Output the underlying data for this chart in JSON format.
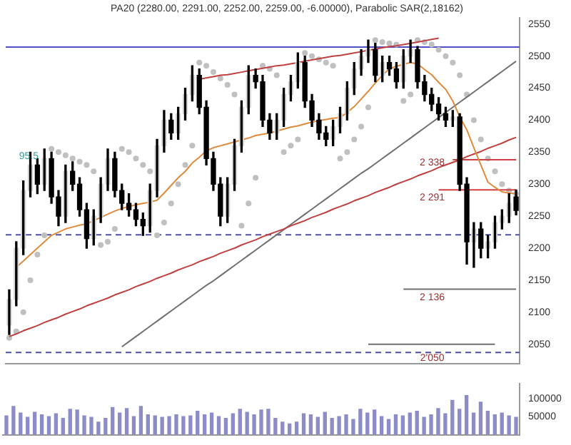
{
  "chart_data": [
    {
      "type": "candlestick",
      "title": "PA20 (2280.00, 2291.00, 2252.00, 2259.00, -6.00000), Parabolic SAR(2,18162)",
      "categories": [
        null,
        null,
        null,
        null,
        null,
        null,
        null,
        null,
        null,
        null,
        null,
        null,
        null,
        null,
        null,
        null,
        null,
        null,
        null,
        null,
        null,
        null,
        null,
        null,
        null,
        null,
        null,
        null,
        null,
        null,
        null,
        null,
        null,
        null,
        null,
        null,
        null,
        null,
        null,
        null,
        null,
        null,
        null,
        null,
        null,
        null,
        null,
        null,
        null,
        null,
        null,
        null,
        null,
        null,
        null,
        null,
        null,
        null,
        null,
        null,
        null,
        null,
        null,
        null,
        null,
        null,
        null,
        null,
        null,
        null,
        null,
        null,
        null
      ],
      "ohlc": [
        [
          2080,
          2135,
          2065,
          2120
        ],
        [
          2120,
          2210,
          2110,
          2200
        ],
        [
          2200,
          2305,
          2190,
          2290
        ],
        [
          2290,
          2350,
          2280,
          2330
        ],
        [
          2330,
          2340,
          2285,
          2300
        ],
        [
          2300,
          2355,
          2290,
          2340
        ],
        [
          2340,
          2350,
          2270,
          2280
        ],
        [
          2280,
          2290,
          2235,
          2250
        ],
        [
          2250,
          2330,
          2240,
          2320
        ],
        [
          2320,
          2335,
          2290,
          2300
        ],
        [
          2300,
          2310,
          2250,
          2260
        ],
        [
          2260,
          2270,
          2200,
          2215
        ],
        [
          2215,
          2260,
          2205,
          2250
        ],
        [
          2250,
          2310,
          2240,
          2300
        ],
        [
          2300,
          2355,
          2290,
          2340
        ],
        [
          2340,
          2350,
          2280,
          2290
        ],
        [
          2290,
          2300,
          2260,
          2270
        ],
        [
          2270,
          2285,
          2250,
          2260
        ],
        [
          2260,
          2270,
          2235,
          2245
        ],
        [
          2245,
          2255,
          2220,
          2235
        ],
        [
          2235,
          2300,
          2225,
          2290
        ],
        [
          2290,
          2370,
          2280,
          2360
        ],
        [
          2360,
          2415,
          2350,
          2400
        ],
        [
          2400,
          2410,
          2370,
          2380
        ],
        [
          2380,
          2420,
          2370,
          2410
        ],
        [
          2410,
          2450,
          2400,
          2440
        ],
        [
          2440,
          2485,
          2430,
          2470
        ],
        [
          2470,
          2480,
          2410,
          2420
        ],
        [
          2420,
          2430,
          2330,
          2340
        ],
        [
          2340,
          2350,
          2290,
          2300
        ],
        [
          2300,
          2310,
          2235,
          2250
        ],
        [
          2250,
          2310,
          2240,
          2300
        ],
        [
          2300,
          2370,
          2290,
          2360
        ],
        [
          2360,
          2430,
          2350,
          2420
        ],
        [
          2420,
          2485,
          2410,
          2470
        ],
        [
          2470,
          2480,
          2450,
          2460
        ],
        [
          2460,
          2470,
          2390,
          2400
        ],
        [
          2400,
          2410,
          2370,
          2380
        ],
        [
          2380,
          2410,
          2370,
          2400
        ],
        [
          2400,
          2450,
          2390,
          2440
        ],
        [
          2440,
          2470,
          2430,
          2460
        ],
        [
          2460,
          2505,
          2450,
          2490
        ],
        [
          2490,
          2500,
          2420,
          2430
        ],
        [
          2430,
          2440,
          2390,
          2400
        ],
        [
          2400,
          2410,
          2370,
          2380
        ],
        [
          2380,
          2390,
          2360,
          2370
        ],
        [
          2370,
          2400,
          2360,
          2390
        ],
        [
          2390,
          2420,
          2380,
          2410
        ],
        [
          2410,
          2460,
          2400,
          2450
        ],
        [
          2450,
          2490,
          2440,
          2480
        ],
        [
          2480,
          2510,
          2470,
          2500
        ],
        [
          2500,
          2525,
          2490,
          2510
        ],
        [
          2510,
          2520,
          2460,
          2470
        ],
        [
          2470,
          2500,
          2460,
          2490
        ],
        [
          2490,
          2500,
          2470,
          2480
        ],
        [
          2480,
          2490,
          2450,
          2460
        ],
        [
          2460,
          2510,
          2450,
          2500
        ],
        [
          2500,
          2525,
          2490,
          2510
        ],
        [
          2510,
          2515,
          2450,
          2460
        ],
        [
          2460,
          2470,
          2430,
          2440
        ],
        [
          2440,
          2450,
          2415,
          2425
        ],
        [
          2425,
          2435,
          2400,
          2410
        ],
        [
          2410,
          2420,
          2390,
          2400
        ],
        [
          2400,
          2415,
          2390,
          2405
        ],
        [
          2405,
          2410,
          2290,
          2300
        ],
        [
          2300,
          2310,
          2175,
          2210
        ],
        [
          2210,
          2240,
          2170,
          2230
        ],
        [
          2230,
          2240,
          2185,
          2200
        ],
        [
          2200,
          2220,
          2185,
          2210
        ],
        [
          2210,
          2250,
          2200,
          2240
        ],
        [
          2240,
          2260,
          2230,
          2250
        ],
        [
          2250,
          2285,
          2240,
          2270
        ],
        [
          2280,
          2291,
          2252,
          2259
        ]
      ],
      "color": "#000000",
      "colors": [
        "#d8d8d8",
        "#d8d8d8",
        "#d8d8d8",
        "#d8d8d8",
        "#000000",
        "#d8d8d8",
        "#000000",
        "#000000",
        "#d8d8d8",
        "#000000",
        "#000000",
        "#000000",
        "#d8d8d8",
        "#d8d8d8",
        "#d8d8d8",
        "#000000",
        "#000000",
        "#000000",
        "#000000",
        "#000000",
        "#d8d8d8",
        "#d8d8d8",
        "#d8d8d8",
        "#000000",
        "#d8d8d8",
        "#d8d8d8",
        "#d8d8d8",
        "#000000",
        "#000000",
        "#000000",
        "#000000",
        "#d8d8d8",
        "#d8d8d8",
        "#d8d8d8",
        "#d8d8d8",
        "#000000",
        "#000000",
        "#000000",
        "#d8d8d8",
        "#d8d8d8",
        "#d8d8d8",
        "#d8d8d8",
        "#000000",
        "#000000",
        "#000000",
        "#000000",
        "#d8d8d8",
        "#d8d8d8",
        "#d8d8d8",
        "#d8d8d8",
        "#d8d8d8",
        "#d8d8d8",
        "#000000",
        "#d8d8d8",
        "#000000",
        "#000000",
        "#d8d8d8",
        "#d8d8d8",
        "#000000",
        "#000000",
        "#000000",
        "#000000",
        "#000000",
        "#d8d8d8",
        "#000000",
        "#000000",
        "#d8d8d8",
        "#000000",
        "#d8d8d8",
        "#d8d8d8",
        "#d8d8d8",
        "#d8d8d8",
        "#000000"
      ],
      "series": [
        {
          "type": "line",
          "color": "#e08a3c",
          "values": [
            null,
            2170,
            2180,
            2190,
            2200,
            2210,
            2220,
            2225,
            2230,
            2233,
            2236,
            2238,
            2243,
            2248,
            2253,
            2258,
            2262,
            2265,
            2268,
            2270,
            2272,
            2275,
            2286,
            2298,
            2310,
            2320,
            2333,
            2342,
            2352,
            2357,
            2360,
            2363,
            2366,
            2369,
            2372,
            2376,
            2378,
            2380,
            2383,
            2386,
            2389,
            2391,
            2394,
            2397,
            2399,
            2401,
            2403,
            2404,
            2412,
            2421,
            2433,
            2445,
            2458,
            2470,
            2480,
            2484,
            2487,
            2490,
            2488,
            2479,
            2471,
            2459,
            2448,
            2430,
            2405,
            2385,
            2357,
            2330,
            2303,
            2295,
            2288,
            2286,
            2285
          ]
        },
        {
          "type": "scatter",
          "marker": "circle",
          "color": "#c0c0c0",
          "values": [
            2060,
            2070,
            2100,
            2150,
            2190,
            2220,
            2355,
            2350,
            2345,
            2340,
            2335,
            2330,
            2320,
            2205,
            2210,
            2230,
            2355,
            2350,
            2340,
            2330,
            2320,
            2220,
            2240,
            2270,
            2300,
            2330,
            2360,
            2490,
            2485,
            2475,
            2465,
            2455,
            2440,
            2235,
            2270,
            2310,
            2485,
            2480,
            2470,
            2350,
            2360,
            2370,
            2505,
            2500,
            2495,
            2490,
            2485,
            2340,
            2350,
            2370,
            2390,
            2420,
            2525,
            2522,
            2520,
            2518,
            2430,
            2440,
            2525,
            2522,
            2518,
            2510,
            2500,
            2490,
            2470,
            2440,
            2400,
            2370,
            2340,
            2320,
            2300,
            2290,
            2285
          ]
        },
        {
          "type": "line",
          "color": "#c04040",
          "values": [
            null,
            null,
            null,
            null,
            null,
            null,
            null,
            null,
            null,
            null,
            null,
            null,
            null,
            null,
            null,
            null,
            null,
            null,
            null,
            null,
            null,
            null,
            null,
            null,
            null,
            null,
            null,
            2464,
            2466,
            2468,
            2470,
            2471,
            2473,
            2475,
            2477,
            2479,
            2481,
            2483,
            2485,
            2486,
            2488,
            2490,
            2492,
            2494,
            2496,
            2498,
            2500,
            2501,
            2503,
            2505,
            2507,
            2509,
            2511,
            2513,
            2515,
            2516,
            2518,
            2520,
            2522,
            2524,
            2526,
            2528,
            null,
            null,
            null,
            null,
            null,
            null,
            null,
            null,
            null,
            null,
            null
          ]
        },
        {
          "type": "line",
          "color": "#c04040",
          "values": [
            2062,
            2066,
            2071,
            2075,
            2079,
            2084,
            2088,
            2092,
            2097,
            2101,
            2105,
            2110,
            2114,
            2118,
            2122,
            2127,
            2131,
            2135,
            2140,
            2144,
            2148,
            2153,
            2157,
            2161,
            2166,
            2170,
            2174,
            2179,
            2183,
            2187,
            2192,
            2196,
            2200,
            2205,
            2209,
            2213,
            2218,
            2222,
            2226,
            2230,
            2235,
            2239,
            2243,
            2248,
            2252,
            2256,
            2261,
            2265,
            2269,
            2274,
            2278,
            2282,
            2287,
            2291,
            2295,
            2300,
            2304,
            2308,
            2313,
            2317,
            2321,
            2326,
            2330,
            2334,
            2338,
            2343,
            2347,
            2351,
            2356,
            2360,
            2364,
            2369,
            2373
          ]
        },
        {
          "type": "line",
          "color": "#707070",
          "values": [
            null,
            null,
            null,
            null,
            null,
            null,
            null,
            null,
            null,
            null,
            null,
            null,
            null,
            null,
            null,
            null,
            2046,
            2054,
            2062,
            2070,
            2078,
            2086,
            2094,
            2102,
            2110,
            2118,
            2126,
            2134,
            2142,
            2149,
            2157,
            2165,
            2173,
            2181,
            2189,
            2197,
            2205,
            2213,
            2221,
            2229,
            2237,
            2245,
            2253,
            2261,
            2269,
            2277,
            2285,
            2293,
            2301,
            2309,
            2317,
            2324,
            2332,
            2340,
            2348,
            2356,
            2364,
            2372,
            2380,
            2388,
            2396,
            2404,
            2412,
            2420,
            2428,
            2436,
            2444,
            2452,
            2460,
            2468,
            2476,
            2484,
            2492
          ]
        },
        {
          "type": "line",
          "color": "#d04040",
          "values": [
            null,
            null,
            null,
            null,
            null,
            null,
            null,
            null,
            null,
            null,
            null,
            null,
            null,
            null,
            null,
            null,
            null,
            null,
            null,
            null,
            null,
            null,
            null,
            null,
            null,
            null,
            null,
            null,
            null,
            null,
            null,
            null,
            null,
            null,
            null,
            null,
            null,
            null,
            null,
            null,
            null,
            null,
            null,
            null,
            null,
            null,
            null,
            null,
            null,
            null,
            null,
            null,
            null,
            null,
            null,
            null,
            null,
            null,
            null,
            null,
            null,
            null,
            null,
            2338,
            2338,
            2338,
            2338,
            2338,
            2338,
            2338,
            2338,
            2338,
            2338
          ]
        },
        {
          "type": "line",
          "color": "#d04040",
          "values": [
            null,
            null,
            null,
            null,
            null,
            null,
            null,
            null,
            null,
            null,
            null,
            null,
            null,
            null,
            null,
            null,
            null,
            null,
            null,
            null,
            null,
            null,
            null,
            null,
            null,
            null,
            null,
            null,
            null,
            null,
            null,
            null,
            null,
            null,
            null,
            null,
            null,
            null,
            null,
            null,
            null,
            null,
            null,
            null,
            null,
            null,
            null,
            null,
            null,
            null,
            null,
            null,
            null,
            null,
            null,
            null,
            null,
            null,
            null,
            null,
            null,
            2291,
            2291,
            2291,
            2291,
            2291,
            2291,
            2291,
            2291,
            2291,
            2291,
            2291,
            2291
          ]
        },
        {
          "type": "line",
          "color": "#707070",
          "values": [
            null,
            null,
            null,
            null,
            null,
            null,
            null,
            null,
            null,
            null,
            null,
            null,
            null,
            null,
            null,
            null,
            null,
            null,
            null,
            null,
            null,
            null,
            null,
            null,
            null,
            null,
            null,
            null,
            null,
            null,
            null,
            null,
            null,
            null,
            null,
            null,
            null,
            null,
            null,
            null,
            null,
            null,
            null,
            null,
            null,
            null,
            null,
            null,
            null,
            null,
            null,
            null,
            null,
            null,
            null,
            null,
            2136,
            2136,
            2136,
            2136,
            2136,
            2136,
            2136,
            2136,
            2136,
            2136,
            2136,
            2136,
            2136,
            2136,
            2136,
            2136,
            2136
          ]
        },
        {
          "type": "line",
          "color": "#707070",
          "values": [
            null,
            null,
            null,
            null,
            null,
            null,
            null,
            null,
            null,
            null,
            null,
            null,
            null,
            null,
            null,
            null,
            null,
            null,
            null,
            null,
            null,
            null,
            null,
            null,
            null,
            null,
            null,
            null,
            null,
            null,
            null,
            null,
            null,
            null,
            null,
            null,
            null,
            null,
            null,
            null,
            null,
            null,
            null,
            null,
            null,
            null,
            null,
            null,
            null,
            null,
            null,
            2050,
            2050,
            2050,
            2050,
            2050,
            2050,
            2050,
            2050,
            2050,
            2050,
            2050,
            2050,
            2050,
            2050,
            2050,
            2050,
            2050,
            2050,
            2050,
            null,
            null,
            null
          ]
        }
      ],
      "ylim": [
        2020,
        2560
      ],
      "yticks": [
        2050,
        2100,
        2150,
        2200,
        2250,
        2300,
        2350,
        2400,
        2450,
        2500,
        2550
      ],
      "tick_labels": "y",
      "ref_lines": [
        {
          "axis": "y",
          "value": 2514,
          "color": "#5050c8"
        },
        {
          "axis": "y",
          "value": 2221,
          "color": "#5050a0",
          "line_style": "dashed"
        },
        {
          "axis": "y",
          "value": 2037,
          "color": "#5050a0",
          "line_style": "dashed"
        }
      ],
      "annotations": [
        "95.5",
        "2 338",
        "2 291",
        "2 136",
        "2'050"
      ]
    },
    {
      "type": "bar",
      "categories": [
        null,
        null,
        null,
        null,
        null,
        null,
        null,
        null,
        null,
        null,
        null,
        null,
        null,
        null,
        null,
        null,
        null,
        null,
        null,
        null,
        null,
        null,
        null,
        null,
        null,
        null,
        null,
        null,
        null,
        null,
        null,
        null,
        null,
        null,
        null,
        null,
        null,
        null,
        null,
        null,
        null,
        null,
        null,
        null,
        null,
        null,
        null,
        null,
        null,
        null,
        null,
        null,
        null,
        null,
        null,
        null,
        null,
        null,
        null,
        null,
        null,
        null,
        null,
        null,
        null,
        null,
        null,
        null,
        null,
        null,
        null,
        null,
        null
      ],
      "values": [
        52000,
        78000,
        60000,
        48000,
        62000,
        55000,
        50000,
        58000,
        45000,
        70000,
        68000,
        52000,
        48000,
        35000,
        45000,
        75000,
        60000,
        72000,
        50000,
        78000,
        55000,
        52000,
        48000,
        50000,
        55000,
        50000,
        52000,
        65000,
        55000,
        60000,
        50000,
        45000,
        58000,
        70000,
        62000,
        55000,
        68000,
        70000,
        45000,
        35000,
        30000,
        35000,
        58000,
        55000,
        48000,
        62000,
        45000,
        50000,
        55000,
        42000,
        70000,
        60000,
        68000,
        50000,
        42000,
        55000,
        52000,
        60000,
        65000,
        48000,
        55000,
        72000,
        58000,
        95000,
        70000,
        108000,
        60000,
        90000,
        65000,
        55000,
        60000,
        52000,
        48000
      ],
      "color": "#8c8cc8",
      "ylim": [
        0,
        140000
      ],
      "yticks": [
        50000,
        100000
      ],
      "tick_labels": "y"
    }
  ]
}
